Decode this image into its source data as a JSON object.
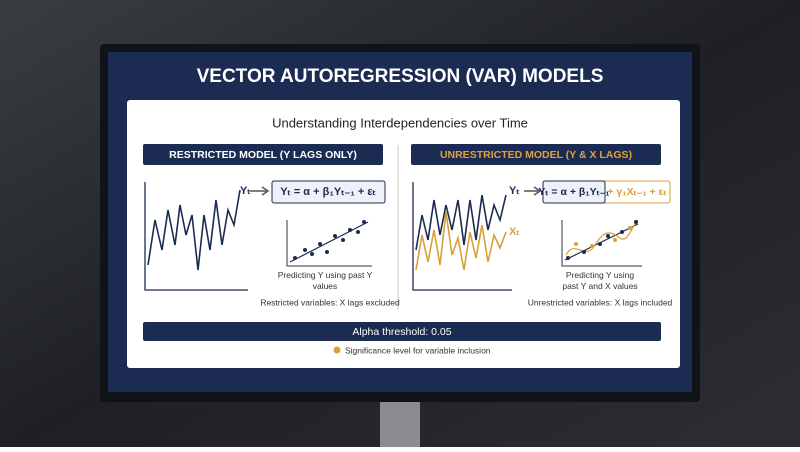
{
  "header": {
    "title": "VECTOR AUTOREGRESSION (VAR) MODELS",
    "subtitle": "Understanding Interdependencies over Time"
  },
  "restricted": {
    "heading": "RESTRICTED MODEL (Y LAGS ONLY)",
    "series_label": "Yₜ",
    "equation": "Yₜ = α + β₁Yₜ₋₁ + εₜ",
    "caption": "Predicting Y using past Y values",
    "note": "Restricted variables: X lags excluded"
  },
  "unrestricted": {
    "heading": "UNRESTRICTED MODEL (Y & X LAGS)",
    "series_label_y": "Yₜ",
    "series_label_x": "Xₜ",
    "equation_y_part": "Yₜ = α + β₁Yₜ₋₁",
    "equation_x_part": "+ γ₁Xₜ₋₁ + εₜ",
    "caption": "Predicting Y using past Y and X values",
    "note": "Unrestricted variables: X lags included"
  },
  "footer": {
    "threshold": "Alpha threshold: 0.05",
    "legend": "Significance level for variable inclusion"
  }
}
